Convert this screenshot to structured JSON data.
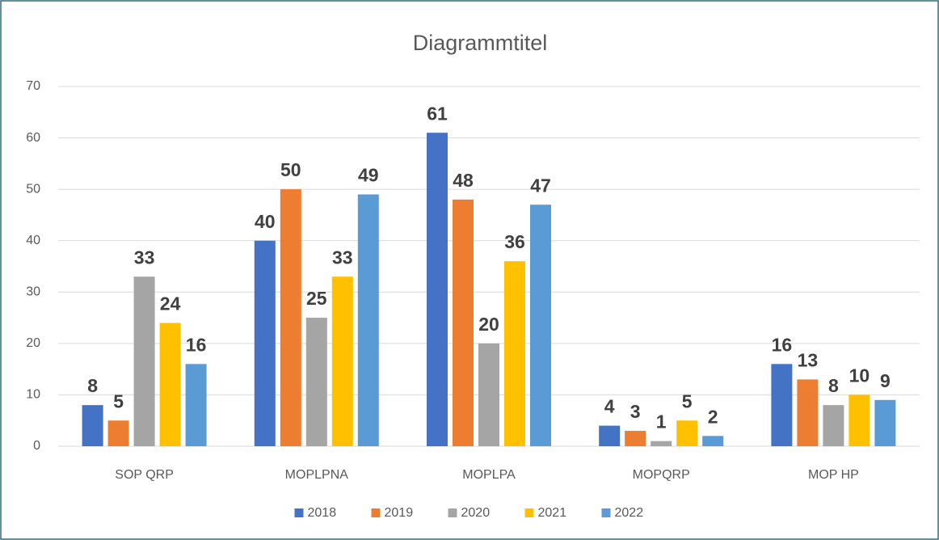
{
  "chart_data": {
    "type": "bar",
    "title": "Diagrammtitel",
    "categories": [
      "SOP QRP",
      "MOPLPNA",
      "MOPLPA",
      "MOPQRP",
      "MOP HP"
    ],
    "series": [
      {
        "name": "2018",
        "color": "#4472c4",
        "values": [
          8,
          40,
          61,
          4,
          16
        ]
      },
      {
        "name": "2019",
        "color": "#ed7d31",
        "values": [
          5,
          50,
          48,
          3,
          13
        ]
      },
      {
        "name": "2020",
        "color": "#a5a5a5",
        "values": [
          33,
          25,
          20,
          1,
          8
        ]
      },
      {
        "name": "2021",
        "color": "#ffc000",
        "values": [
          24,
          33,
          36,
          5,
          10
        ]
      },
      {
        "name": "2022",
        "color": "#5b9bd5",
        "values": [
          16,
          49,
          47,
          2,
          9
        ]
      }
    ],
    "ylim": [
      0,
      70
    ],
    "yticks": [
      0,
      10,
      20,
      30,
      40,
      50,
      60,
      70
    ],
    "grid": true,
    "legend": "bottom"
  }
}
